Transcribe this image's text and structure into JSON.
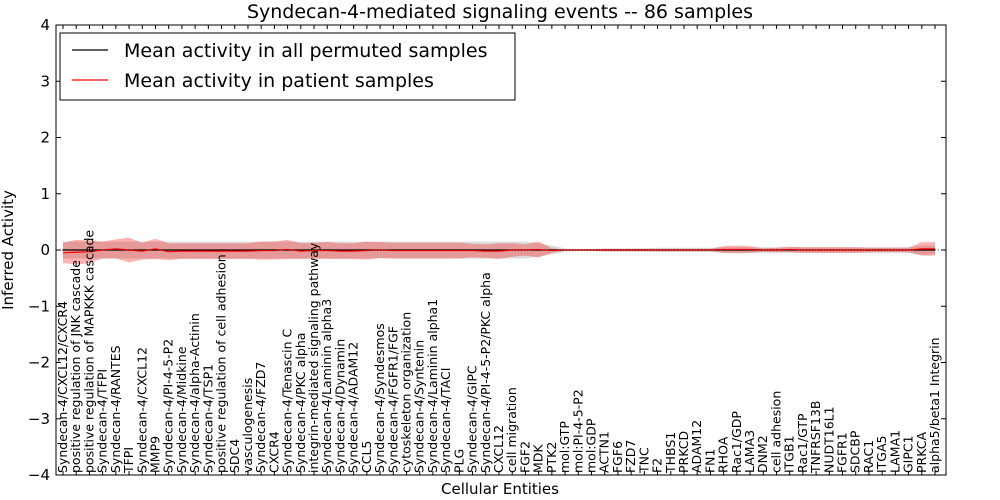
{
  "chart_data": {
    "type": "line",
    "title": "Syndecan-4-mediated signaling events -- 86 samples",
    "xlabel": "Cellular Entities",
    "ylabel": "Inferred Activity",
    "ylim": [
      -4,
      4
    ],
    "yticks": [
      "−4",
      "−3",
      "−2",
      "−1",
      "0",
      "1",
      "2",
      "3",
      "4"
    ],
    "grid": false,
    "legend_position": "top-left",
    "categories": [
      "Syndecan-4/CXCL12/CXCR4",
      "positive regulation of JNK cascade",
      "positive regulation of MAPKKK cascade",
      "Syndecan-4/TFPI",
      "Syndecan-4/RANTES",
      "TFPI",
      "Syndecan-4/CXCL12",
      "MMP9",
      "Syndecan-4/PI-4-5-P2",
      "Syndecan-4/Midkine",
      "Syndecan-4/alpha-Actinin",
      "Syndecan-4/TSP1",
      "positive regulation of cell adhesion",
      "SDC4",
      "vasculogenesis",
      "Syndecan-4/FZD7",
      "CXCR4",
      "Syndecan-4/Tenascin C",
      "Syndecan-4/PKC alpha",
      "integrin-mediated signaling pathway",
      "Syndecan-4/Laminin alpha3",
      "Syndecan-4/Dynamin",
      "Syndecan-4/ADAM12",
      "CCL5",
      "Syndecan-4/Syndesmos",
      "Syndecan-4/FGFR1/FGF",
      "cytoskeleton organization",
      "Syndecan-4/Syntenin",
      "Syndecan-4/Laminin alpha1",
      "Syndecan-4/TACI",
      "PLG",
      "Syndecan-4/GIPC",
      "Syndecan-4/PI-4-5-P2/PKC alpha",
      "CXCL12",
      "cell migration",
      "FGF2",
      "MDK",
      "PTK2",
      "mol:GTP",
      "mol:PI-4-5-P2",
      "mol:GDP",
      "ACTN1",
      "FGF6",
      "FZD7",
      "TNC",
      "F2",
      "THBS1",
      "PRKCD",
      "ADAM12",
      "FN1",
      "RHOA",
      "Rac1/GDP",
      "LAMA3",
      "DNM2",
      "cell adhesion",
      "ITGB1",
      "Rac1/GTP",
      "TNFRSF13B",
      "NUDT16L1",
      "FGFR1",
      "SDCBP",
      "RAC1",
      "ITGA5",
      "LAMA1",
      "GIPC1",
      "PRKCA",
      "alpha5/beta1 Integrin"
    ],
    "series": [
      {
        "name": "Mean activity in all permuted samples",
        "color": "#000000",
        "values": [
          0,
          0,
          0,
          0,
          0,
          0,
          0,
          0,
          0,
          0,
          0,
          0,
          0,
          0,
          0,
          0,
          0,
          0,
          0,
          0,
          0,
          0,
          0,
          0,
          0,
          0,
          0,
          0,
          0,
          0,
          0,
          0,
          0,
          0,
          0,
          0,
          0,
          0,
          0,
          0,
          0,
          0,
          0,
          0,
          0,
          0,
          0,
          0,
          0,
          0,
          0,
          0,
          0,
          0,
          0,
          0,
          0,
          0,
          0,
          0,
          0,
          0,
          0,
          0,
          0,
          0,
          0
        ],
        "band": [
          0.15,
          0.15,
          0.15,
          0.15,
          0.15,
          0.15,
          0.15,
          0.15,
          0.15,
          0.15,
          0.15,
          0.15,
          0.15,
          0.15,
          0.15,
          0.15,
          0.15,
          0.15,
          0.15,
          0.15,
          0.15,
          0.15,
          0.15,
          0.15,
          0.15,
          0.15,
          0.15,
          0.15,
          0.15,
          0.15,
          0.15,
          0.15,
          0.15,
          0.15,
          0.15,
          0.15,
          0.12,
          0.08,
          0.03,
          0.02,
          0.02,
          0.03,
          0.03,
          0.03,
          0.03,
          0.04,
          0.04,
          0.04,
          0.04,
          0.04,
          0.05,
          0.05,
          0.05,
          0.05,
          0.05,
          0.05,
          0.05,
          0.05,
          0.05,
          0.05,
          0.05,
          0.05,
          0.05,
          0.05,
          0.05,
          0.08,
          0.08
        ]
      },
      {
        "name": "Mean activity in patient samples",
        "color": "#ff0000",
        "values": [
          -0.05,
          -0.04,
          -0.03,
          0.0,
          0.02,
          0.0,
          -0.02,
          0.02,
          -0.03,
          -0.02,
          -0.02,
          -0.02,
          -0.02,
          -0.02,
          -0.02,
          -0.01,
          -0.01,
          0.01,
          -0.02,
          -0.01,
          -0.01,
          -0.02,
          -0.02,
          -0.01,
          0.0,
          -0.01,
          -0.01,
          -0.01,
          -0.01,
          -0.01,
          -0.01,
          -0.01,
          -0.02,
          -0.02,
          0.0,
          0.0,
          0.01,
          -0.01,
          0.0,
          0.0,
          0.0,
          0.0,
          0.0,
          0.0,
          0.0,
          0.0,
          0.0,
          0.0,
          0.0,
          0.0,
          0.01,
          0.01,
          0.01,
          0.0,
          0.0,
          0.01,
          0.0,
          0.0,
          0.0,
          0.0,
          0.0,
          0.0,
          0.0,
          0.0,
          0.0,
          0.02,
          0.02
        ],
        "band": [
          0.18,
          0.22,
          0.2,
          0.15,
          0.17,
          0.22,
          0.15,
          0.18,
          0.15,
          0.14,
          0.14,
          0.14,
          0.14,
          0.14,
          0.14,
          0.16,
          0.16,
          0.17,
          0.14,
          0.14,
          0.15,
          0.14,
          0.14,
          0.16,
          0.14,
          0.14,
          0.14,
          0.14,
          0.14,
          0.14,
          0.14,
          0.12,
          0.12,
          0.14,
          0.12,
          0.1,
          0.14,
          0.04,
          0.01,
          0.01,
          0.01,
          0.02,
          0.02,
          0.02,
          0.02,
          0.02,
          0.02,
          0.02,
          0.02,
          0.02,
          0.06,
          0.07,
          0.06,
          0.03,
          0.04,
          0.05,
          0.05,
          0.05,
          0.05,
          0.05,
          0.05,
          0.04,
          0.04,
          0.04,
          0.04,
          0.12,
          0.12
        ]
      }
    ]
  }
}
